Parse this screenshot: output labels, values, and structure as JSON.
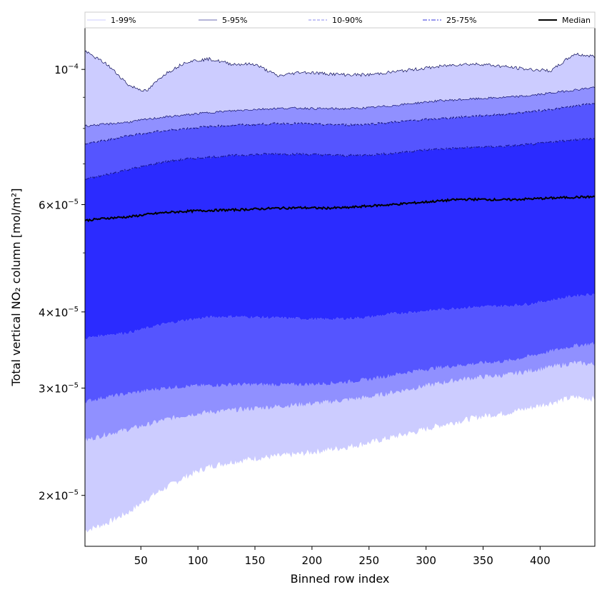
{
  "chart_data": {
    "type": "area",
    "xlabel": "Binned row index",
    "ylabel": "Total vertical NO₂ column [mol/m²]",
    "x_range": [
      1,
      448
    ],
    "ylim": [
      1.65e-05,
      0.000117
    ],
    "y_scale": "log",
    "grid": false,
    "legend_placement": "top, horizontal",
    "x_ticks": [
      {
        "value": 50,
        "label": "50"
      },
      {
        "value": 100,
        "label": "100"
      },
      {
        "value": 150,
        "label": "150"
      },
      {
        "value": 200,
        "label": "200"
      },
      {
        "value": 250,
        "label": "250"
      },
      {
        "value": 300,
        "label": "300"
      },
      {
        "value": 350,
        "label": "350"
      },
      {
        "value": 400,
        "label": "400"
      }
    ],
    "y_ticks": [
      {
        "value": 2e-05,
        "mantissa": "2",
        "exponent": "−5"
      },
      {
        "value": 3e-05,
        "mantissa": "3",
        "exponent": "−5"
      },
      {
        "value": 4e-05,
        "mantissa": "4",
        "exponent": "−5"
      },
      {
        "value": 6e-05,
        "mantissa": "6",
        "exponent": "−5"
      },
      {
        "value": 0.0001,
        "mantissa": "",
        "exponent": "−4"
      }
    ],
    "legend": [
      {
        "label": "1-99%",
        "color": "#ccccff",
        "style": "thin"
      },
      {
        "label": "5-95%",
        "color": "#6a6ab0",
        "style": "thin"
      },
      {
        "label": "10-90%",
        "color": "#8888ee",
        "style": "dashed"
      },
      {
        "label": "25-75%",
        "color": "#3333dd",
        "style": "dashdot"
      },
      {
        "label": "Median",
        "color": "#000000",
        "style": "solid"
      }
    ],
    "series_x": [
      1,
      20,
      40,
      55,
      70,
      90,
      110,
      130,
      150,
      170,
      190,
      210,
      230,
      250,
      270,
      290,
      310,
      330,
      350,
      370,
      390,
      410,
      430,
      448
    ],
    "series": [
      {
        "name": "1%",
        "color": "#ccccff",
        "values": [
          1.75e-05,
          1.8e-05,
          1.88e-05,
          1.97e-05,
          2.05e-05,
          2.15e-05,
          2.23e-05,
          2.27e-05,
          2.3e-05,
          2.32e-05,
          2.34e-05,
          2.37e-05,
          2.4e-05,
          2.44e-05,
          2.49e-05,
          2.54e-05,
          2.6e-05,
          2.65e-05,
          2.7e-05,
          2.73e-05,
          2.78e-05,
          2.84e-05,
          2.9e-05,
          2.88e-05
        ]
      },
      {
        "name": "5%",
        "color": "#9090ff",
        "values": [
          2.46e-05,
          2.52e-05,
          2.57e-05,
          2.61e-05,
          2.66e-05,
          2.71e-05,
          2.74e-05,
          2.76e-05,
          2.78e-05,
          2.8e-05,
          2.82e-05,
          2.84e-05,
          2.87e-05,
          2.9e-05,
          2.95e-05,
          3e-05,
          3.05e-05,
          3.1e-05,
          3.13e-05,
          3.15e-05,
          3.2e-05,
          3.25e-05,
          3.3e-05,
          3.28e-05
        ]
      },
      {
        "name": "10%",
        "color": "#5555ff",
        "values": [
          2.85e-05,
          2.9e-05,
          2.94e-05,
          2.97e-05,
          3e-05,
          3.02e-05,
          3.03e-05,
          3.04e-05,
          3.04e-05,
          3.04e-05,
          3.04e-05,
          3.05e-05,
          3.07e-05,
          3.1e-05,
          3.15e-05,
          3.2e-05,
          3.24e-05,
          3.27e-05,
          3.3e-05,
          3.32e-05,
          3.38e-05,
          3.45e-05,
          3.52e-05,
          3.55e-05
        ]
      },
      {
        "name": "25%",
        "color": "#2b2bff",
        "values": [
          3.62e-05,
          3.67e-05,
          3.7e-05,
          3.76e-05,
          3.82e-05,
          3.88e-05,
          3.92e-05,
          3.93e-05,
          3.92e-05,
          3.91e-05,
          3.9e-05,
          3.89e-05,
          3.9e-05,
          3.92e-05,
          3.97e-05,
          4e-05,
          4.03e-05,
          4.06e-05,
          4.08e-05,
          4.09e-05,
          4.12e-05,
          4.18e-05,
          4.25e-05,
          4.28e-05
        ]
      },
      {
        "name": "Median",
        "color": "#000000",
        "values": [
          5.65e-05,
          5.7e-05,
          5.73e-05,
          5.78e-05,
          5.82e-05,
          5.85e-05,
          5.87e-05,
          5.88e-05,
          5.9e-05,
          5.92e-05,
          5.93e-05,
          5.92e-05,
          5.93e-05,
          5.97e-05,
          6e-05,
          6.04e-05,
          6.08e-05,
          6.12e-05,
          6.12e-05,
          6.11e-05,
          6.13e-05,
          6.15e-05,
          6.17e-05,
          6.18e-05
        ]
      },
      {
        "name": "75%",
        "color": "#1a1a99",
        "values": [
          6.6e-05,
          6.72e-05,
          6.86e-05,
          6.95e-05,
          7.05e-05,
          7.13e-05,
          7.18e-05,
          7.22e-05,
          7.25e-05,
          7.27e-05,
          7.26e-05,
          7.24e-05,
          7.22e-05,
          7.24e-05,
          7.28e-05,
          7.35e-05,
          7.4e-05,
          7.43e-05,
          7.46e-05,
          7.48e-05,
          7.53e-05,
          7.6e-05,
          7.67e-05,
          7.7e-05
        ]
      },
      {
        "name": "90%",
        "color": "#15157a",
        "values": [
          7.55e-05,
          7.65e-05,
          7.8e-05,
          7.86e-05,
          7.93e-05,
          8e-05,
          8.06e-05,
          8.1e-05,
          8.12e-05,
          8.15e-05,
          8.15e-05,
          8.12e-05,
          8.11e-05,
          8.13e-05,
          8.19e-05,
          8.25e-05,
          8.3e-05,
          8.35e-05,
          8.4e-05,
          8.45e-05,
          8.52e-05,
          8.6e-05,
          8.7e-05,
          8.8e-05
        ]
      },
      {
        "name": "95%",
        "color": "#12126a",
        "values": [
          8.08e-05,
          8.13e-05,
          8.2e-05,
          8.28e-05,
          8.35e-05,
          8.42e-05,
          8.5e-05,
          8.55e-05,
          8.6e-05,
          8.63e-05,
          8.64e-05,
          8.62e-05,
          8.62e-05,
          8.65e-05,
          8.72e-05,
          8.8e-05,
          8.88e-05,
          8.92e-05,
          8.96e-05,
          9e-05,
          9.05e-05,
          9.15e-05,
          9.25e-05,
          9.35e-05
        ]
      },
      {
        "name": "99%",
        "color": "#0a0a55",
        "values": [
          0.000107,
          0.000102,
          9.4e-05,
          9.2e-05,
          9.8e-05,
          0.000103,
          0.000104,
          0.000102,
          0.000102,
          9.75e-05,
          9.9e-05,
          9.85e-05,
          9.8e-05,
          9.8e-05,
          9.9e-05,
          0.0001,
          0.000101,
          0.000102,
          0.000102,
          0.000101,
          0.0001,
          9.95e-05,
          0.000106,
          0.000105
        ]
      }
    ]
  }
}
